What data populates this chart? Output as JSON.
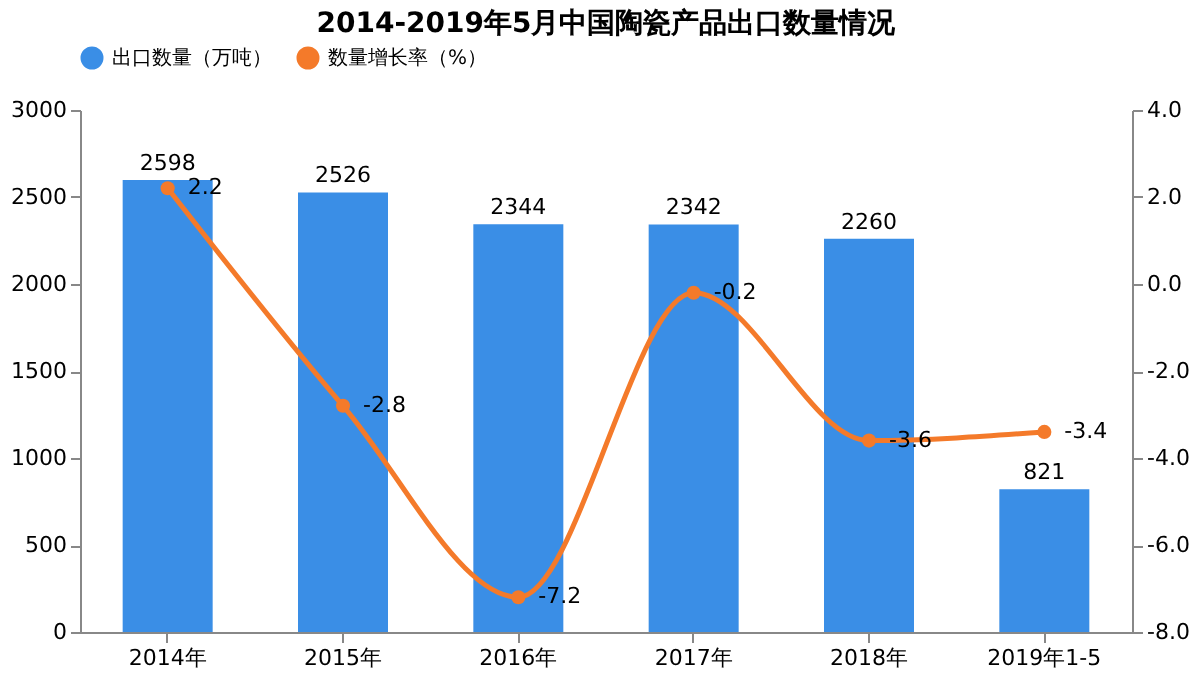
{
  "chart_data": {
    "type": "bar",
    "title": "2014-2019年5月中国陶瓷产品出口数量情况",
    "categories": [
      "2014年",
      "2015年",
      "2016年",
      "2017年",
      "2018年",
      "2019年1-5"
    ],
    "series": [
      {
        "name": "出口数量（万吨）",
        "color": "#3a8ee6",
        "values": [
          2598,
          2526,
          2344,
          2342,
          2260,
          821
        ]
      },
      {
        "name": "数量增长率（%）",
        "type": "line",
        "axis": "y2",
        "color": "#f47a2a",
        "marker": "circle",
        "values": [
          2.2,
          -2.8,
          -7.2,
          -0.2,
          -3.6,
          -3.4
        ]
      }
    ],
    "ylim": [
      0,
      3000
    ],
    "yticks": [
      0,
      500,
      1000,
      1500,
      2000,
      2500,
      3000
    ],
    "y2lim": [
      -8,
      4
    ],
    "y2ticks": [
      {
        "value": -8,
        "label": "-8.0"
      },
      {
        "value": -6,
        "label": "-6.0"
      },
      {
        "value": -4,
        "label": "-4.0"
      },
      {
        "value": -2,
        "label": "-2.0"
      },
      {
        "value": 0,
        "label": "0.0"
      },
      {
        "value": 2,
        "label": "2.0"
      },
      {
        "value": 4,
        "label": "4.0"
      }
    ],
    "data_labels": true,
    "legend": "top",
    "grid": false
  }
}
